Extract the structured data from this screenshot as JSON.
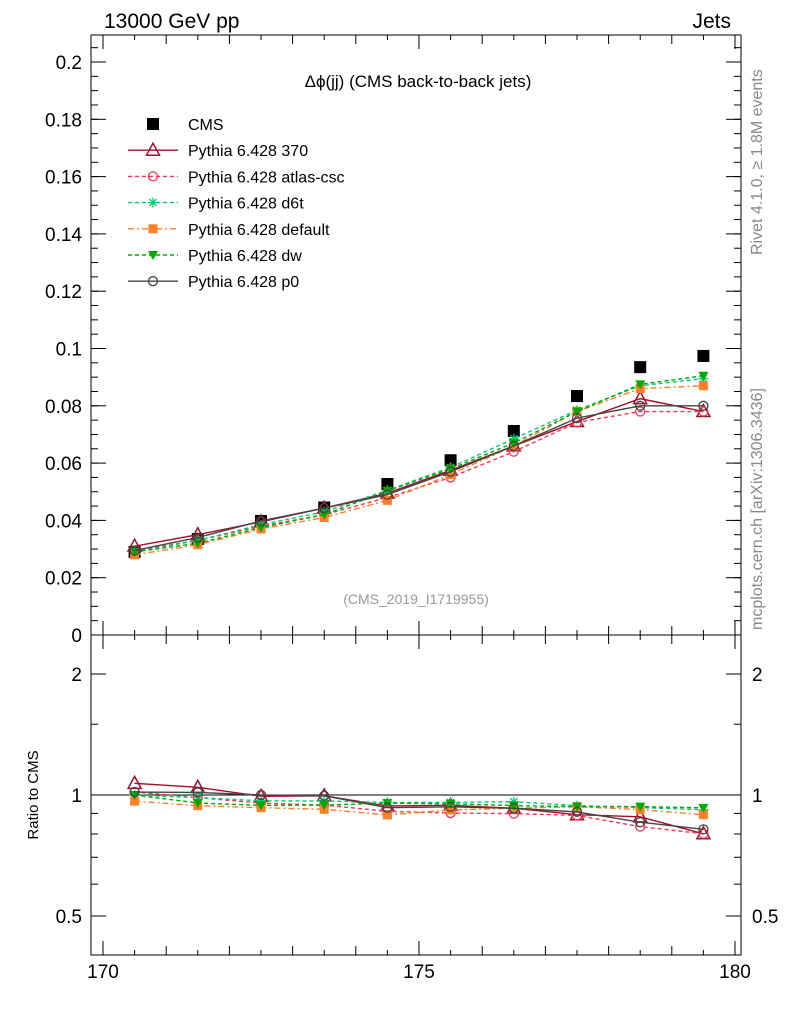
{
  "header": {
    "left": "13000 GeV pp",
    "right": "Jets"
  },
  "side": {
    "rivet": "Rivet 4.1.0, ≥ 1.8M events",
    "mcplots": "mcplots.cern.ch [arXiv:1306.3436]"
  },
  "chart_data": {
    "type": "line",
    "title": "Δϕ(jj) (CMS back-to-back jets)",
    "watermark": "(CMS_2019_I1719955)",
    "xlim": [
      170,
      180
    ],
    "ylim": [
      0,
      0.21
    ],
    "xticks": [
      "170",
      "175",
      "180"
    ],
    "yticks": [
      "0",
      "0.02",
      "0.04",
      "0.06",
      "0.08",
      "0.1",
      "0.12",
      "0.14",
      "0.16",
      "0.18",
      "0.2"
    ],
    "ratio": {
      "ylabel": "Ratio to CMS",
      "scale": "log",
      "ylim": [
        0.42,
        2.3
      ],
      "yticks": [
        "0.5",
        "1",
        "2"
      ]
    },
    "legend_position": "top-left",
    "x": [
      170.5,
      171.5,
      172.5,
      173.5,
      174.5,
      175.5,
      176.5,
      177.5,
      178.5,
      179.5
    ],
    "series": [
      {
        "name": "CMS",
        "color": "#000000",
        "marker": "square",
        "dash": "none",
        "values": [
          0.029,
          0.0335,
          0.0398,
          0.0445,
          0.0527,
          0.061,
          0.0712,
          0.0834,
          0.0935,
          0.0974
        ]
      },
      {
        "name": "Pythia 6.428 370",
        "color": "#a0102a",
        "marker": "triangle",
        "dash": "",
        "values": [
          0.031,
          0.035,
          0.0395,
          0.0443,
          0.0495,
          0.0575,
          0.066,
          0.0745,
          0.0825,
          0.078
        ]
      },
      {
        "name": "Pythia 6.428 atlas-csc",
        "color": "#ff3355",
        "marker": "circle",
        "dash": "4,3",
        "values": [
          0.0295,
          0.033,
          0.038,
          0.042,
          0.048,
          0.055,
          0.064,
          0.0742,
          0.078,
          0.078
        ]
      },
      {
        "name": "Pythia 6.428 d6t",
        "color": "#00cc77",
        "marker": "star",
        "dash": "4,3",
        "values": [
          0.029,
          0.033,
          0.0385,
          0.043,
          0.0505,
          0.0585,
          0.0685,
          0.0785,
          0.087,
          0.0895
        ]
      },
      {
        "name": "Pythia 6.428 default",
        "color": "#ff7f27",
        "marker": "fsquare",
        "dash": "6,3,2,3",
        "values": [
          0.028,
          0.0315,
          0.037,
          0.041,
          0.047,
          0.056,
          0.066,
          0.078,
          0.086,
          0.087
        ]
      },
      {
        "name": "Pythia 6.428 dw",
        "color": "#00aa00",
        "marker": "ftriangle",
        "dash": "4,3",
        "values": [
          0.029,
          0.032,
          0.0375,
          0.042,
          0.0503,
          0.058,
          0.067,
          0.078,
          0.0875,
          0.0905
        ]
      },
      {
        "name": "Pythia 6.428 p0",
        "color": "#444444",
        "marker": "circle",
        "dash": "",
        "values": [
          0.0295,
          0.034,
          0.0398,
          0.0443,
          0.049,
          0.057,
          0.066,
          0.0757,
          0.08,
          0.08
        ]
      }
    ]
  }
}
